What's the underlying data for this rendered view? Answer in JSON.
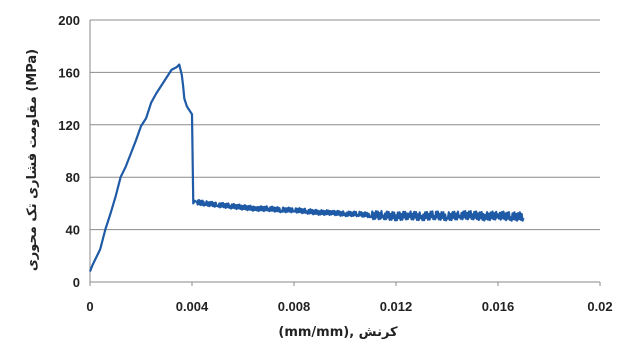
{
  "chart_data": {
    "type": "line",
    "title": "",
    "xlabel": "کرنش ,(mm/mm)",
    "ylabel": "مقاومت فشاری تک محوری (MPa)",
    "xlim": [
      0,
      0.02
    ],
    "ylim": [
      0,
      200
    ],
    "x_ticks": [
      "0",
      "0.004",
      "0.008",
      "0.012",
      "0.016",
      "0.02"
    ],
    "y_ticks": [
      "0",
      "40",
      "80",
      "120",
      "160",
      "200"
    ],
    "grid": "horizontal",
    "line_color": "#1f5aa6",
    "series": [
      {
        "x": [
          0,
          0.0001,
          0.0002,
          0.0004,
          0.0006,
          0.0008,
          0.001,
          0.0012,
          0.0014,
          0.0016,
          0.0018,
          0.002,
          0.0022,
          0.0024,
          0.0026,
          0.0028,
          0.003,
          0.0032,
          0.0034,
          0.0035,
          0.0036,
          0.00365,
          0.0037,
          0.0038,
          0.0039,
          0.004,
          0.00405,
          0.0041,
          0.0042,
          0.0045,
          0.005,
          0.0055,
          0.006,
          0.0065,
          0.007,
          0.0075,
          0.008,
          0.0085,
          0.009,
          0.0095,
          0.01,
          0.0105,
          0.011,
          0.0115,
          0.012,
          0.0125,
          0.013,
          0.0135,
          0.014,
          0.0145,
          0.015,
          0.0155,
          0.016,
          0.0165,
          0.017
        ],
        "y": [
          8,
          13,
          17,
          25,
          40,
          52,
          65,
          80,
          88,
          98,
          108,
          119,
          125,
          137,
          144,
          150,
          156,
          162,
          164,
          166,
          158,
          150,
          140,
          134,
          131,
          128,
          60,
          62,
          61,
          60,
          59,
          58,
          57,
          56,
          56,
          55,
          55,
          54,
          53,
          53,
          52,
          52,
          51,
          51,
          50,
          51,
          50,
          51,
          50,
          51,
          51,
          50,
          51,
          50,
          50
        ]
      }
    ]
  }
}
